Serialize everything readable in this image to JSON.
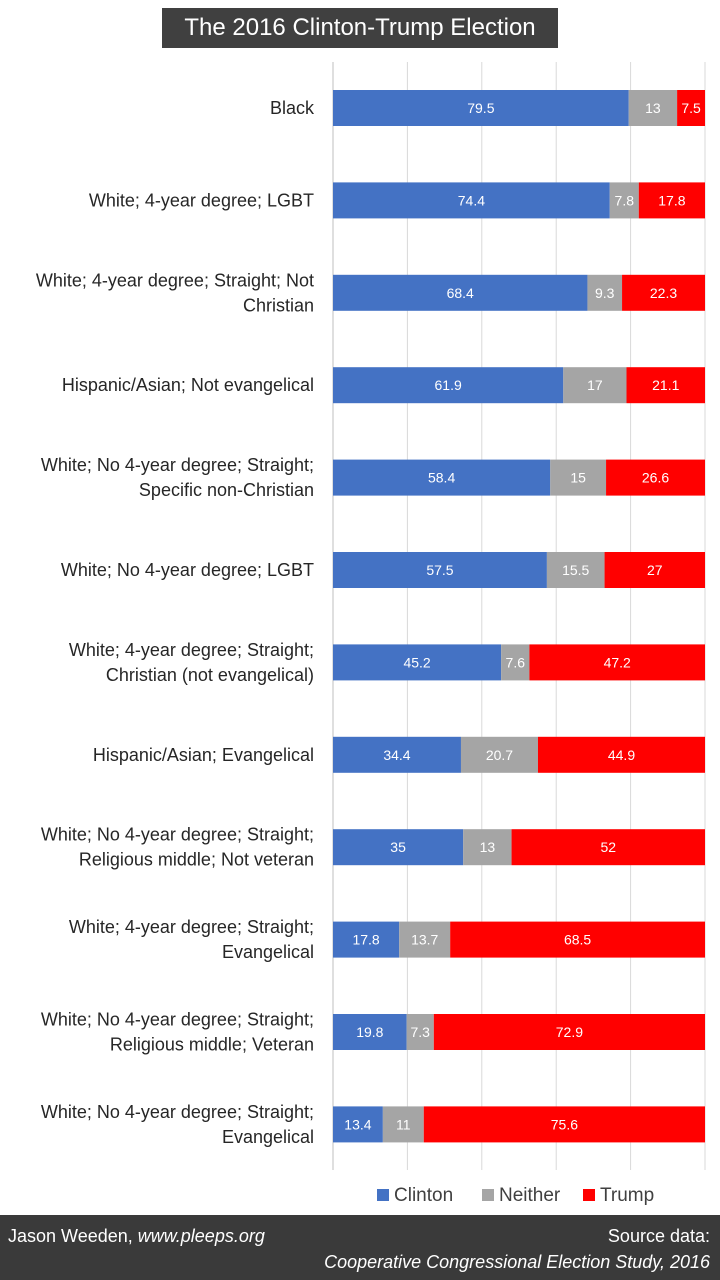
{
  "title": "The 2016 Clinton-Trump Election",
  "colors": {
    "clinton": "#4472C4",
    "neither": "#A5A5A5",
    "trump": "#FF0000"
  },
  "footer": {
    "author": "Jason Weeden,",
    "site": "www.pleeps.org",
    "source_label": "Source data:",
    "source_study": "Cooperative Congressional Election Study, 2016"
  },
  "chart_data": {
    "type": "bar",
    "orientation": "horizontal",
    "stacked": true,
    "xlim": [
      0,
      100
    ],
    "grid": true,
    "legend_position": "bottom-right",
    "categories": [
      [
        "Black"
      ],
      [
        "White; 4-year degree; LGBT"
      ],
      [
        "White; 4-year degree; Straight; Not",
        "Christian"
      ],
      [
        "Hispanic/Asian; Not evangelical"
      ],
      [
        "White; No 4-year degree; Straight;",
        "Specific non-Christian"
      ],
      [
        "White; No 4-year degree; LGBT"
      ],
      [
        "White; 4-year degree; Straight;",
        "Christian (not evangelical)"
      ],
      [
        "Hispanic/Asian; Evangelical"
      ],
      [
        "White; No 4-year degree; Straight;",
        "Religious middle; Not veteran"
      ],
      [
        "White; 4-year degree; Straight;",
        "Evangelical"
      ],
      [
        "White; No 4-year degree; Straight;",
        "Religious middle; Veteran"
      ],
      [
        "White; No 4-year degree; Straight;",
        "Evangelical"
      ]
    ],
    "series": [
      {
        "name": "Clinton",
        "values": [
          79.5,
          74.4,
          68.4,
          61.9,
          58.4,
          57.5,
          45.2,
          34.4,
          35,
          17.8,
          19.8,
          13.4
        ]
      },
      {
        "name": "Neither",
        "values": [
          13,
          7.8,
          9.3,
          17,
          15,
          15.5,
          7.6,
          20.7,
          13,
          13.7,
          7.3,
          11
        ]
      },
      {
        "name": "Trump",
        "values": [
          7.5,
          17.8,
          22.3,
          21.1,
          26.6,
          27,
          47.2,
          44.9,
          52,
          68.5,
          72.9,
          75.6
        ]
      }
    ]
  }
}
